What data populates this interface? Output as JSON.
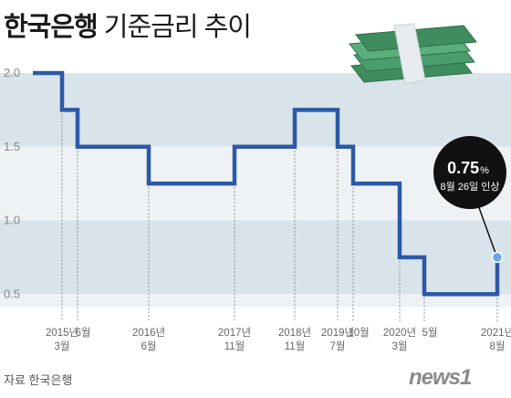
{
  "title": {
    "bold": "한국은행",
    "light": "기준금리 추이"
  },
  "source": "자료  한국은행",
  "brand": "news1",
  "colors": {
    "line": "#2c59a6",
    "band_dark": "#d9e3ea",
    "band_light": "#eef2f5",
    "callout_bg": "#111111",
    "marker": "#6ba6e8",
    "cash_green": "#4a9e6e"
  },
  "decoration": {
    "icon": "money-stack-icon"
  },
  "callout": {
    "value": "0.75",
    "unit": "%",
    "note": "8월 26일 인상"
  },
  "chart_data": {
    "type": "line",
    "step": true,
    "title": "기준금리 추이",
    "xlabel": "",
    "ylabel": "",
    "ylim": [
      0.4,
      2.0
    ],
    "y_ticks": [
      "2.0",
      "1.5",
      "1.0",
      "0.5"
    ],
    "grid": true,
    "legend": "none",
    "x": [
      "2015-01",
      "2015-03",
      "2015-06",
      "2016-06",
      "2017-11",
      "2018-11",
      "2019-07",
      "2019-10",
      "2020-03",
      "2020-05",
      "2021-08"
    ],
    "values": [
      2.0,
      1.75,
      1.5,
      1.25,
      1.5,
      1.75,
      1.5,
      1.25,
      0.75,
      0.5,
      0.75
    ],
    "x_tick_labels": [
      {
        "year": "2015년",
        "month": "3월"
      },
      {
        "year": "",
        "month": "6월"
      },
      {
        "year": "2016년",
        "month": "6월"
      },
      {
        "year": "2017년",
        "month": "11월"
      },
      {
        "year": "2018년",
        "month": "11월"
      },
      {
        "year": "2019년",
        "month": "7월"
      },
      {
        "year": "",
        "month": "10월"
      },
      {
        "year": "2020년",
        "month": "3월"
      },
      {
        "year": "",
        "month": "5월"
      },
      {
        "year": "2021년",
        "month": "8월"
      }
    ]
  }
}
